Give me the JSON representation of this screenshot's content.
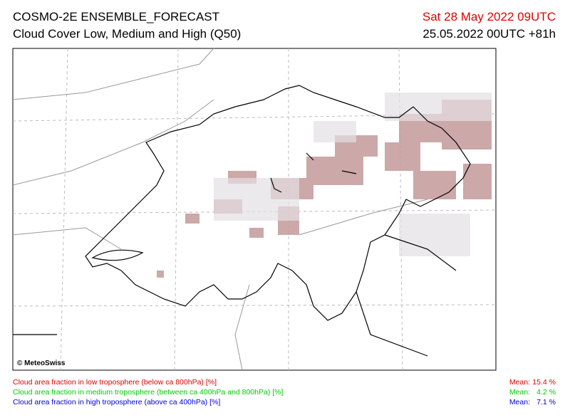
{
  "header": {
    "title": "COSMO-2E ENSEMBLE_FORECAST",
    "subtitle": "Cloud Cover Low, Medium and High (Q50)",
    "valid_time": "Sat 28 May 2022 09UTC",
    "valid_time_color": "#e00000",
    "run_time": "25.05.2022 00UTC +81h"
  },
  "map": {
    "copyright": "© MeteoSwiss"
  },
  "legend": [
    {
      "label": "Cloud area fraction in low troposphere (below ca 800hPa) [%]",
      "mean_label": "Mean:",
      "mean": "15.4 %",
      "color": "#e00000"
    },
    {
      "label": "Cloud area fraction in medium troposphere (between ca 400hPa and 800hPa) [%]",
      "mean_label": "Mean:",
      "mean": "4.2 %",
      "color": "#00cc00"
    },
    {
      "label": "Cloud area fraction in high troposphere (above ca 400hPa) [%]",
      "mean_label": "Mean:",
      "mean": "7.1 %",
      "color": "#0000e0"
    }
  ]
}
